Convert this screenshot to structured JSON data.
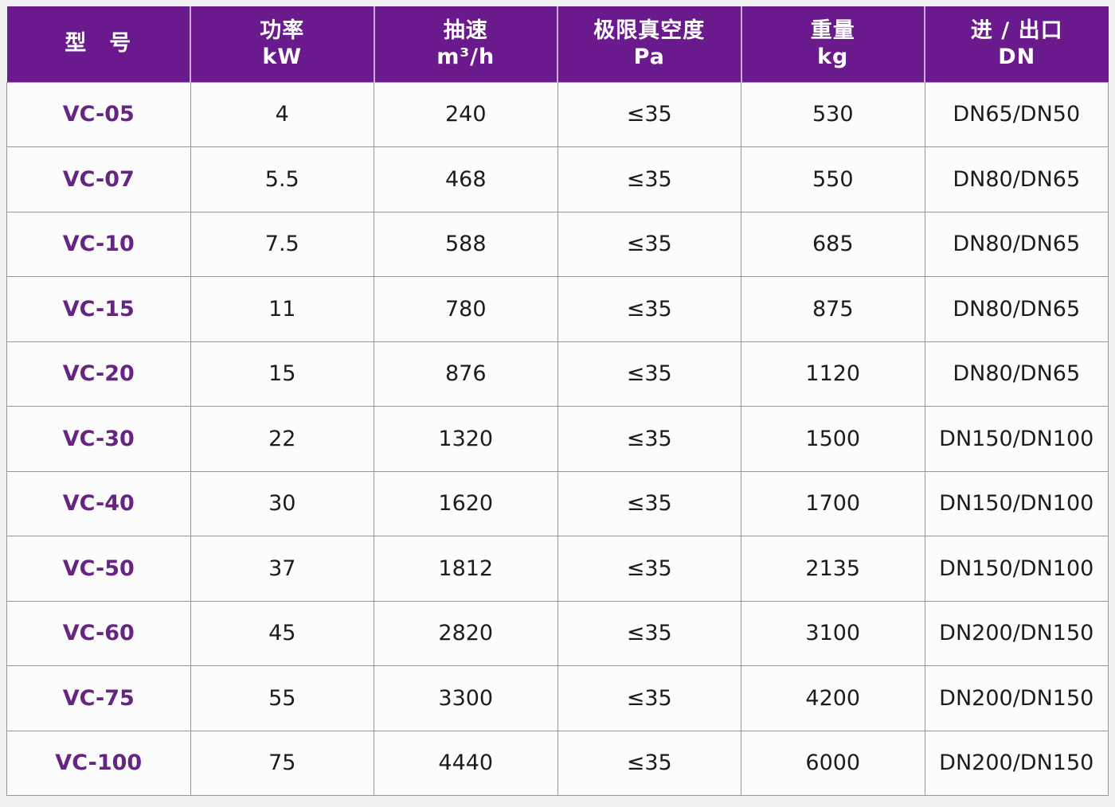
{
  "colors": {
    "header_bg": "#6a1a8c",
    "header_separator": "#c9aad8",
    "model_text": "#662583",
    "body_text": "#1c1c1c",
    "grid_line": "#979797",
    "cell_bg": "#fcfcfc",
    "page_bg": "#f2f1f2"
  },
  "table": {
    "columns": [
      {
        "label": "型　号",
        "unit": ""
      },
      {
        "label": "功率",
        "unit": "kW"
      },
      {
        "label": "抽速",
        "unit": "m³/h"
      },
      {
        "label": "极限真空度",
        "unit": "Pa"
      },
      {
        "label": "重量",
        "unit": "kg"
      },
      {
        "label": "进 / 出口",
        "unit": "DN"
      }
    ],
    "rows": [
      {
        "model": "VC-05",
        "power": "4",
        "speed": "240",
        "vacuum": "≤35",
        "weight": "530",
        "ports": "DN65/DN50"
      },
      {
        "model": "VC-07",
        "power": "5.5",
        "speed": "468",
        "vacuum": "≤35",
        "weight": "550",
        "ports": "DN80/DN65"
      },
      {
        "model": "VC-10",
        "power": "7.5",
        "speed": "588",
        "vacuum": "≤35",
        "weight": "685",
        "ports": "DN80/DN65"
      },
      {
        "model": "VC-15",
        "power": "11",
        "speed": "780",
        "vacuum": "≤35",
        "weight": "875",
        "ports": "DN80/DN65"
      },
      {
        "model": "VC-20",
        "power": "15",
        "speed": "876",
        "vacuum": "≤35",
        "weight": "1120",
        "ports": "DN80/DN65"
      },
      {
        "model": "VC-30",
        "power": "22",
        "speed": "1320",
        "vacuum": "≤35",
        "weight": "1500",
        "ports": "DN150/DN100"
      },
      {
        "model": "VC-40",
        "power": "30",
        "speed": "1620",
        "vacuum": "≤35",
        "weight": "1700",
        "ports": "DN150/DN100"
      },
      {
        "model": "VC-50",
        "power": "37",
        "speed": "1812",
        "vacuum": "≤35",
        "weight": "2135",
        "ports": "DN150/DN100"
      },
      {
        "model": "VC-60",
        "power": "45",
        "speed": "2820",
        "vacuum": "≤35",
        "weight": "3100",
        "ports": "DN200/DN150"
      },
      {
        "model": "VC-75",
        "power": "55",
        "speed": "3300",
        "vacuum": "≤35",
        "weight": "4200",
        "ports": "DN200/DN150"
      },
      {
        "model": "VC-100",
        "power": "75",
        "speed": "4440",
        "vacuum": "≤35",
        "weight": "6000",
        "ports": "DN200/DN150"
      }
    ]
  }
}
